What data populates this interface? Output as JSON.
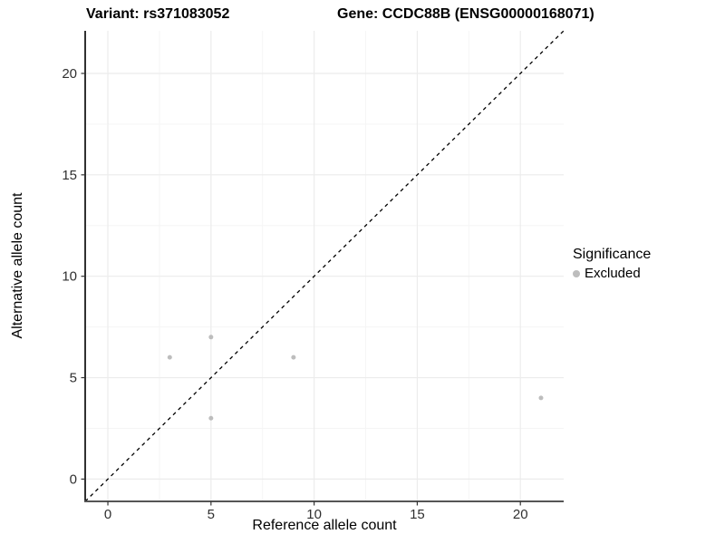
{
  "titles": {
    "variant": "Variant: rs371083052",
    "gene": "Gene: CCDC88B (ENSG00000168071)"
  },
  "chart_data": {
    "type": "scatter",
    "title_left": "Variant: rs371083052",
    "title_right": "Gene: CCDC88B (ENSG00000168071)",
    "xlabel": "Reference allele count",
    "ylabel": "Alternative allele count",
    "xlim": [
      -1.1,
      22.1
    ],
    "ylim": [
      -1.1,
      22.1
    ],
    "x_ticks": [
      0,
      5,
      10,
      15,
      20
    ],
    "y_ticks": [
      0,
      5,
      10,
      15,
      20
    ],
    "x_minor_ticks": [
      2.5,
      7.5,
      12.5,
      17.5
    ],
    "y_minor_ticks": [
      2.5,
      7.5,
      12.5,
      17.5
    ],
    "grid": {
      "major_color": "#ececec",
      "minor_color": "#f5f5f5",
      "on": true
    },
    "identity_line": {
      "equation": "y = x",
      "style": "dashed",
      "color": "#000000"
    },
    "series": [
      {
        "name": "Excluded",
        "color": "#bdbdbd",
        "points": [
          [
            3,
            6
          ],
          [
            5,
            7
          ],
          [
            5,
            3
          ],
          [
            9,
            6
          ],
          [
            21,
            4
          ]
        ]
      }
    ],
    "legend": {
      "title": "Significance",
      "position": "right",
      "items": [
        {
          "label": "Excluded",
          "color": "#bdbdbd",
          "marker": "circle"
        }
      ]
    }
  },
  "legend": {
    "title": "Significance",
    "item_excluded": "Excluded",
    "swatch_color": "#bdbdbd"
  },
  "axes": {
    "xlabel": "Reference allele count",
    "ylabel": "Alternative allele count"
  },
  "colors": {
    "point": "#bdbdbd",
    "identity_line": "#000000",
    "axis_line_y": "#1a1a1a",
    "axis_line_x": "#555555",
    "tick_label": "#303030",
    "grid_major": "#ececec",
    "grid_minor": "#f5f5f5",
    "background": "#ffffff"
  }
}
